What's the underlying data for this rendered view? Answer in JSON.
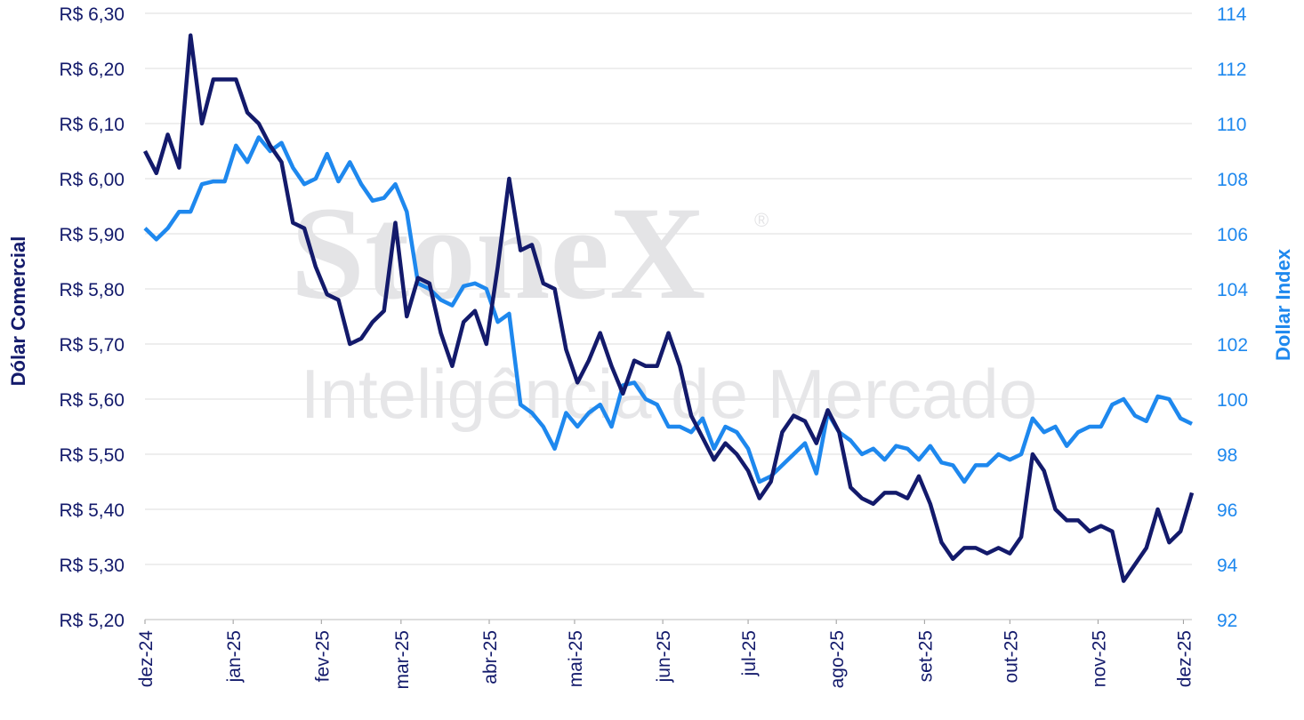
{
  "chart_data": {
    "type": "line",
    "y_label": "Dólar Comercial",
    "y2_label": "Dollar Index",
    "watermark": {
      "brand": "StoneX",
      "mark": "®",
      "tagline": "Inteligência de Mercado"
    },
    "x": [
      0,
      4,
      8,
      12,
      16,
      20,
      24,
      28,
      32,
      36,
      40,
      44,
      48,
      52,
      56,
      60,
      64,
      68,
      72,
      76,
      80,
      84,
      88,
      92,
      96,
      100,
      104,
      108,
      112,
      116,
      120,
      124,
      128,
      132,
      136,
      140,
      144,
      148,
      152,
      156,
      160,
      164,
      168,
      172,
      176,
      180,
      184,
      188,
      192,
      196,
      200,
      204,
      208,
      212,
      216,
      220,
      224,
      228,
      232,
      236,
      240,
      244,
      248,
      252,
      256,
      260,
      264,
      268,
      272,
      276,
      280,
      284,
      288,
      292,
      296,
      300,
      304,
      308,
      312,
      316,
      320,
      324,
      328,
      332,
      336,
      340,
      344,
      348,
      352,
      356,
      360,
      364,
      368
    ],
    "xlim": [
      0,
      368
    ],
    "xticks": [
      {
        "value": 0,
        "label": "dez-24"
      },
      {
        "value": 31,
        "label": "jan-25"
      },
      {
        "value": 62,
        "label": "fev-25"
      },
      {
        "value": 90,
        "label": "mar-25"
      },
      {
        "value": 121,
        "label": "abr-25"
      },
      {
        "value": 151,
        "label": "mai-25"
      },
      {
        "value": 182,
        "label": "jun-25"
      },
      {
        "value": 212,
        "label": "jul-25"
      },
      {
        "value": 243,
        "label": "ago-25"
      },
      {
        "value": 274,
        "label": "set-25"
      },
      {
        "value": 304,
        "label": "out-25"
      },
      {
        "value": 335,
        "label": "nov-25"
      },
      {
        "value": 365,
        "label": "dez-25"
      }
    ],
    "ylim": [
      5.2,
      6.3
    ],
    "yticks": [
      {
        "value": 5.2,
        "label": "R$ 5,20"
      },
      {
        "value": 5.3,
        "label": "R$ 5,30"
      },
      {
        "value": 5.4,
        "label": "R$ 5,40"
      },
      {
        "value": 5.5,
        "label": "R$ 5,50"
      },
      {
        "value": 5.6,
        "label": "R$ 5,60"
      },
      {
        "value": 5.7,
        "label": "R$ 5,70"
      },
      {
        "value": 5.8,
        "label": "R$ 5,80"
      },
      {
        "value": 5.9,
        "label": "R$ 5,90"
      },
      {
        "value": 6.0,
        "label": "R$ 6,00"
      },
      {
        "value": 6.1,
        "label": "R$ 6,10"
      },
      {
        "value": 6.2,
        "label": "R$ 6,20"
      },
      {
        "value": 6.3,
        "label": "R$ 6,30"
      }
    ],
    "y2lim": [
      92,
      114
    ],
    "y2ticks": [
      92,
      94,
      96,
      98,
      100,
      102,
      104,
      106,
      108,
      110,
      112,
      114
    ],
    "grid": true,
    "series": [
      {
        "color": "#131a6b",
        "axis": "y",
        "values": [
          6.05,
          6.01,
          6.08,
          6.02,
          6.26,
          6.1,
          6.18,
          6.18,
          6.18,
          6.12,
          6.1,
          6.06,
          6.03,
          5.92,
          5.91,
          5.84,
          5.79,
          5.78,
          5.7,
          5.71,
          5.74,
          5.76,
          5.92,
          5.75,
          5.82,
          5.81,
          5.72,
          5.66,
          5.74,
          5.76,
          5.7,
          5.84,
          6.0,
          5.87,
          5.88,
          5.81,
          5.8,
          5.69,
          5.63,
          5.67,
          5.72,
          5.66,
          5.61,
          5.67,
          5.66,
          5.66,
          5.72,
          5.66,
          5.57,
          5.53,
          5.49,
          5.52,
          5.5,
          5.47,
          5.42,
          5.45,
          5.54,
          5.57,
          5.56,
          5.52,
          5.58,
          5.54,
          5.44,
          5.42,
          5.41,
          5.43,
          5.43,
          5.42,
          5.46,
          5.41,
          5.34,
          5.31,
          5.33,
          5.33,
          5.32,
          5.33,
          5.32,
          5.35,
          5.5,
          5.47,
          5.4,
          5.38,
          5.38,
          5.36,
          5.37,
          5.36,
          5.27,
          5.3,
          5.33,
          5.4,
          5.34,
          5.36,
          5.43
        ]
      },
      {
        "color": "#1e88ee",
        "axis": "y2",
        "values": [
          106.2,
          105.8,
          106.2,
          106.8,
          106.8,
          107.8,
          107.9,
          107.9,
          109.2,
          108.6,
          109.5,
          109.0,
          109.3,
          108.4,
          107.8,
          108.0,
          108.9,
          107.9,
          108.6,
          107.8,
          107.2,
          107.3,
          107.8,
          106.8,
          104.2,
          104.0,
          103.6,
          103.4,
          104.1,
          104.2,
          104.0,
          102.8,
          103.1,
          99.8,
          99.5,
          99.0,
          98.2,
          99.5,
          99.0,
          99.5,
          99.8,
          99.0,
          100.5,
          100.6,
          100.0,
          99.8,
          99.0,
          99.0,
          98.8,
          99.3,
          98.2,
          99.0,
          98.8,
          98.2,
          97.0,
          97.2,
          97.6,
          98.0,
          98.4,
          97.3,
          99.5,
          98.8,
          98.5,
          98.0,
          98.2,
          97.8,
          98.3,
          98.2,
          97.8,
          98.3,
          97.7,
          97.6,
          97.0,
          97.6,
          97.6,
          98.0,
          97.8,
          98.0,
          99.3,
          98.8,
          99.0,
          98.3,
          98.8,
          99.0,
          99.0,
          99.8,
          100.0,
          99.4,
          99.2,
          100.1,
          100.0,
          99.3,
          99.1
        ]
      }
    ]
  }
}
